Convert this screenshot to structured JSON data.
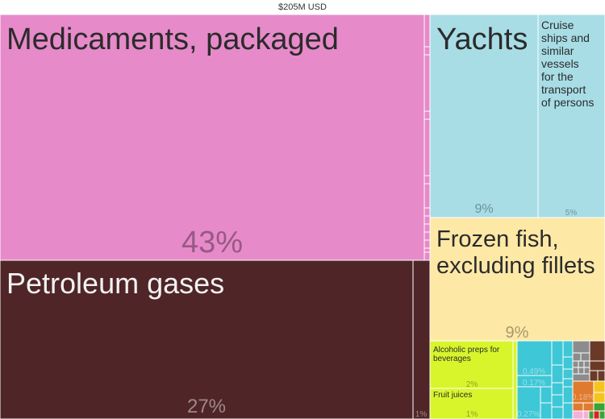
{
  "chart_data": {
    "type": "treemap",
    "total_label": "$205M USD",
    "colors": {
      "pink": "#e78ac9",
      "maroon": "#4f2528",
      "lightblue": "#a8dde6",
      "tan": "#fde8a6",
      "lime": "#d8f52c",
      "cyan": "#3ec7d6",
      "grey": "#8c8c8c",
      "brown": "#6b3a26",
      "orange": "#e07a2e",
      "yellow": "#f5c51f",
      "green": "#3aa335",
      "red": "#e02020",
      "lightpink": "#f4b0d8"
    },
    "items": [
      {
        "id": "medicaments",
        "label": "Medicaments, packaged",
        "share": "43%",
        "color": "pink"
      },
      {
        "id": "petroleum",
        "label": "Petroleum gases",
        "share": "27%",
        "color": "maroon"
      },
      {
        "id": "maroon-small",
        "label": "",
        "share": "1%",
        "color": "maroon"
      },
      {
        "id": "yachts",
        "label": "Yachts",
        "share": "9%",
        "color": "lightblue"
      },
      {
        "id": "cruise",
        "label": "Cruise ships and similar vessels for the transport of persons",
        "share": "5%",
        "color": "lightblue"
      },
      {
        "id": "frozen-fish",
        "label": "Frozen fish, excluding fillets",
        "share": "9%",
        "color": "tan"
      },
      {
        "id": "alcoholic",
        "label": "Alcoholic preps for beverages",
        "share": "2%",
        "color": "lime"
      },
      {
        "id": "fruit-juices",
        "label": "Fruit juices",
        "share": "1%",
        "color": "lime"
      },
      {
        "id": "cyan-a",
        "label": "",
        "share": "0.49%",
        "color": "cyan"
      },
      {
        "id": "cyan-b",
        "label": "",
        "share": "0.17%",
        "color": "cyan"
      },
      {
        "id": "cyan-c",
        "label": "",
        "share": "0.27%",
        "color": "cyan"
      },
      {
        "id": "orange-a",
        "label": "",
        "share": "0.18%",
        "color": "orange"
      }
    ]
  }
}
